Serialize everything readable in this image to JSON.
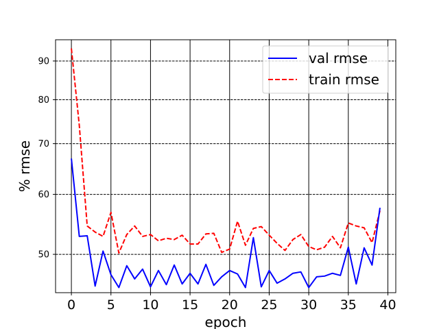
{
  "chart_data": {
    "type": "line",
    "title": "",
    "xlabel": "epoch",
    "ylabel": "% rmse",
    "x_ticks": [
      0,
      5,
      10,
      15,
      20,
      25,
      30,
      35,
      40
    ],
    "y_ticks": [
      50,
      60,
      70,
      80,
      90
    ],
    "xlim": [
      -2,
      41
    ],
    "ylim": [
      44.5,
      96
    ],
    "y_scale": "log",
    "grid": {
      "x": true,
      "y": true,
      "x_style": "solid",
      "y_style": "dashed"
    },
    "legend_position": "top-right",
    "series": [
      {
        "name": "val rmse",
        "color": "#0000ff",
        "line_style": "solid",
        "x": [
          0,
          1,
          2,
          3,
          4,
          5,
          6,
          7,
          8,
          9,
          10,
          11,
          12,
          13,
          14,
          15,
          16,
          17,
          18,
          19,
          20,
          21,
          22,
          23,
          24,
          25,
          26,
          27,
          28,
          29,
          30,
          31,
          32,
          33,
          34,
          35,
          36,
          37,
          38,
          39
        ],
        "values": [
          66.9,
          52.8,
          52.9,
          45.4,
          50.5,
          47.0,
          45.2,
          48.3,
          46.4,
          47.8,
          45.3,
          47.6,
          45.6,
          48.4,
          45.7,
          47.2,
          45.7,
          48.5,
          45.5,
          46.7,
          47.6,
          47.1,
          45.2,
          52.6,
          45.3,
          47.6,
          45.8,
          46.4,
          47.2,
          47.4,
          45.2,
          46.7,
          46.8,
          47.2,
          46.9,
          51.1,
          45.7,
          51.0,
          48.4,
          57.6
        ]
      },
      {
        "name": "train rmse",
        "color": "#ff0000",
        "line_style": "dashed",
        "x": [
          0,
          1,
          2,
          3,
          4,
          5,
          6,
          7,
          8,
          9,
          10,
          11,
          12,
          13,
          14,
          15,
          16,
          17,
          18,
          19,
          20,
          21,
          22,
          23,
          24,
          25,
          26,
          27,
          28,
          29,
          30,
          31,
          32,
          33,
          34,
          35,
          36,
          37,
          38,
          39
        ],
        "values": [
          93.5,
          74.0,
          54.5,
          53.5,
          52.8,
          56.8,
          50.2,
          53.1,
          54.5,
          52.8,
          53.1,
          52.1,
          52.5,
          52.3,
          53.0,
          51.6,
          51.6,
          53.2,
          53.3,
          50.3,
          50.8,
          55.3,
          51.4,
          54.1,
          54.4,
          53.0,
          51.7,
          50.6,
          52.3,
          53.1,
          51.2,
          50.7,
          51.1,
          52.8,
          51.0,
          55.0,
          54.5,
          54.2,
          51.8,
          57.1
        ]
      }
    ]
  }
}
